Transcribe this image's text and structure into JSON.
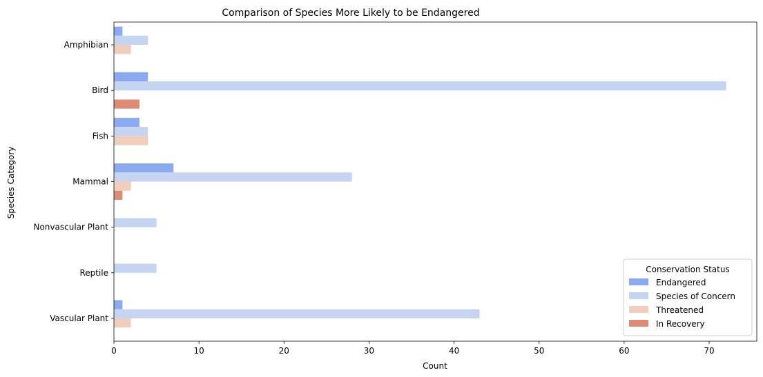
{
  "chart_data": {
    "type": "bar",
    "orientation": "horizontal",
    "title": "Comparison of Species More Likely to be Endangered",
    "xlabel": "Count",
    "ylabel": "Species Category",
    "xlim": [
      0,
      75.6
    ],
    "xticks": [
      0,
      10,
      20,
      30,
      40,
      50,
      60,
      70
    ],
    "grid": false,
    "categories": [
      "Amphibian",
      "Bird",
      "Fish",
      "Mammal",
      "Nonvascular Plant",
      "Reptile",
      "Vascular Plant"
    ],
    "series": [
      {
        "name": "Endangered",
        "color": "#8caaf0",
        "values": [
          1,
          4,
          3,
          7,
          0,
          0,
          1
        ]
      },
      {
        "name": "Species of Concern",
        "color": "#c5d4f0",
        "values": [
          4,
          72,
          4,
          28,
          5,
          5,
          43
        ]
      },
      {
        "name": "Threatened",
        "color": "#f0cdbc",
        "values": [
          2,
          0,
          4,
          2,
          0,
          0,
          2
        ]
      },
      {
        "name": "In Recovery",
        "color": "#dc8b77",
        "values": [
          0,
          3,
          0,
          1,
          0,
          0,
          0
        ]
      }
    ],
    "legend": {
      "title": "Conservation Status",
      "placement": "lower right"
    }
  }
}
